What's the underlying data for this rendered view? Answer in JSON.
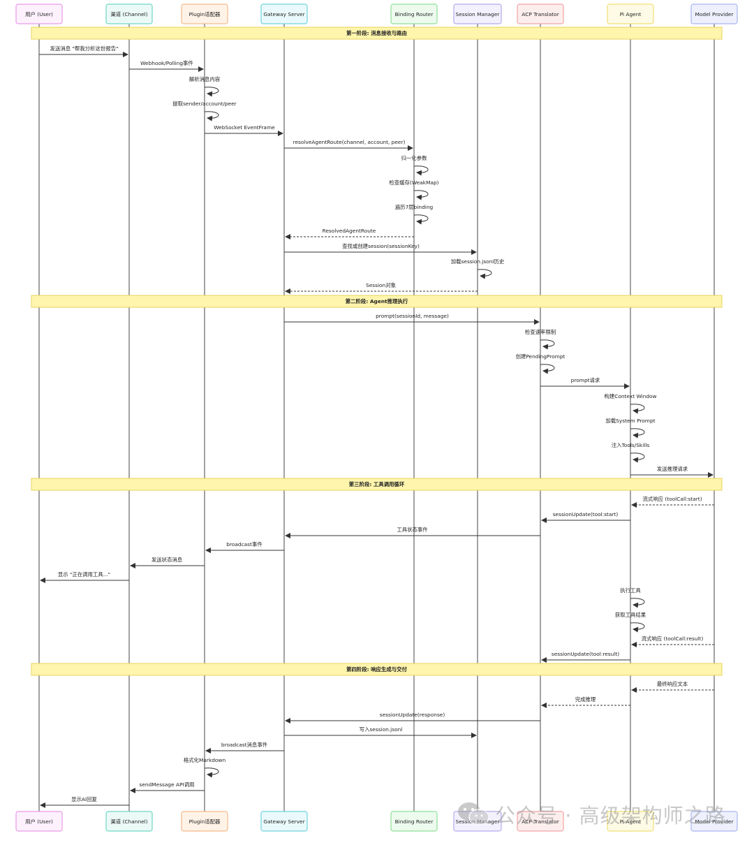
{
  "participants": [
    {
      "label": "用户 (User)",
      "fill": "#fdf1fd",
      "stroke": "#ea9ae8"
    },
    {
      "label": "渠道 (Channel)",
      "fill": "#ecfaf7",
      "stroke": "#6fd6c4"
    },
    {
      "label": "Plugin适配器",
      "fill": "#fff3e8",
      "stroke": "#f5b98a"
    },
    {
      "label": "Gateway Server",
      "fill": "#eaf9fb",
      "stroke": "#6fd3de"
    },
    {
      "label": "Binding Router",
      "fill": "#edfbef",
      "stroke": "#8fdf97"
    },
    {
      "label": "Session Manager",
      "fill": "#f3f1fd",
      "stroke": "#b4aaee"
    },
    {
      "label": "ACP Translator",
      "fill": "#fdeeee",
      "stroke": "#f2a3a3"
    },
    {
      "label": "Pi Agent",
      "fill": "#fdfbe5",
      "stroke": "#f1df77"
    },
    {
      "label": "Model Provider",
      "fill": "#eef1fd",
      "stroke": "#a8b5ee"
    }
  ],
  "phases": [
    {
      "label": "第一阶段: 消息接收与路由"
    },
    {
      "label": "第二阶段: Agent推理执行"
    },
    {
      "label": "第三阶段: 工具调用循环"
    },
    {
      "label": "第四阶段: 响应生成与交付"
    }
  ],
  "messages": [
    {
      "from": 0,
      "to": 1,
      "label": "发送消息 \"帮我分析这份报告\"",
      "dashed": false
    },
    {
      "from": 1,
      "to": 2,
      "label": "Webhook/Polling事件",
      "dashed": false
    },
    {
      "from": 2,
      "to": 2,
      "label": "解析消息内容",
      "dashed": false
    },
    {
      "from": 2,
      "to": 2,
      "label": "提取sender/account/peer",
      "dashed": false
    },
    {
      "from": 2,
      "to": 3,
      "label": "WebSocket EventFrame",
      "dashed": false
    },
    {
      "from": 3,
      "to": 4,
      "label": "resolveAgentRoute(channel, account, peer)",
      "dashed": false
    },
    {
      "from": 4,
      "to": 4,
      "label": "归一化参数",
      "dashed": false
    },
    {
      "from": 4,
      "to": 4,
      "label": "检查缓存(WeakMap)",
      "dashed": false
    },
    {
      "from": 4,
      "to": 4,
      "label": "遍历7层binding",
      "dashed": false
    },
    {
      "from": 4,
      "to": 3,
      "label": "ResolvedAgentRoute",
      "dashed": true
    },
    {
      "from": 3,
      "to": 5,
      "label": "查找或创建session(sessionKey)",
      "dashed": false
    },
    {
      "from": 5,
      "to": 5,
      "label": "加载session.jsonl历史",
      "dashed": false
    },
    {
      "from": 5,
      "to": 3,
      "label": "Session对象",
      "dashed": true
    },
    {
      "from": 3,
      "to": 6,
      "label": "prompt(sessionId, message)",
      "dashed": false
    },
    {
      "from": 6,
      "to": 6,
      "label": "检查速率限制",
      "dashed": false
    },
    {
      "from": 6,
      "to": 6,
      "label": "创建PendingPrompt",
      "dashed": false
    },
    {
      "from": 6,
      "to": 7,
      "label": "prompt请求",
      "dashed": false
    },
    {
      "from": 7,
      "to": 7,
      "label": "构建Context Window",
      "dashed": false
    },
    {
      "from": 7,
      "to": 7,
      "label": "加载System Prompt",
      "dashed": false
    },
    {
      "from": 7,
      "to": 7,
      "label": "注入Tools/Skills",
      "dashed": false
    },
    {
      "from": 7,
      "to": 8,
      "label": "发送推理请求",
      "dashed": false
    },
    {
      "from": 8,
      "to": 7,
      "label": "流式响应 (toolCall:start)",
      "dashed": true
    },
    {
      "from": 7,
      "to": 6,
      "label": "sessionUpdate(tool:start)",
      "dashed": false
    },
    {
      "from": 6,
      "to": 3,
      "label": "工具状态事件",
      "dashed": false
    },
    {
      "from": 3,
      "to": 2,
      "label": "broadcast事件",
      "dashed": false
    },
    {
      "from": 2,
      "to": 1,
      "label": "发送状态消息",
      "dashed": false
    },
    {
      "from": 1,
      "to": 0,
      "label": "显示 \"正在调用工具...\"",
      "dashed": false
    },
    {
      "from": 7,
      "to": 7,
      "label": "执行工具",
      "dashed": false
    },
    {
      "from": 7,
      "to": 7,
      "label": "获取工具结果",
      "dashed": false
    },
    {
      "from": 8,
      "to": 7,
      "label": "流式响应 (toolCall:result)",
      "dashed": true
    },
    {
      "from": 7,
      "to": 6,
      "label": "sessionUpdate(tool:result)",
      "dashed": false
    },
    {
      "from": 8,
      "to": 7,
      "label": "最终响应文本",
      "dashed": true
    },
    {
      "from": 7,
      "to": 6,
      "label": "完成推理",
      "dashed": true
    },
    {
      "from": 6,
      "to": 3,
      "label": "sessionUpdate(response)",
      "dashed": false
    },
    {
      "from": 3,
      "to": 5,
      "label": "写入session.jsonl",
      "dashed": false
    },
    {
      "from": 3,
      "to": 2,
      "label": "broadcast消息事件",
      "dashed": false
    },
    {
      "from": 2,
      "to": 2,
      "label": "格式化Markdown",
      "dashed": false
    },
    {
      "from": 2,
      "to": 1,
      "label": "sendMessage API调用",
      "dashed": false
    },
    {
      "from": 1,
      "to": 0,
      "label": "显示AI回复",
      "dashed": false
    }
  ],
  "watermark": {
    "icon": "wechat-icon",
    "text": "公众号 · 高级架构师之路"
  },
  "colors": {
    "line": "#333333",
    "lifeline": "#444444",
    "phase_fill": "#fff5ad",
    "phase_stroke": "#e8d35a"
  }
}
